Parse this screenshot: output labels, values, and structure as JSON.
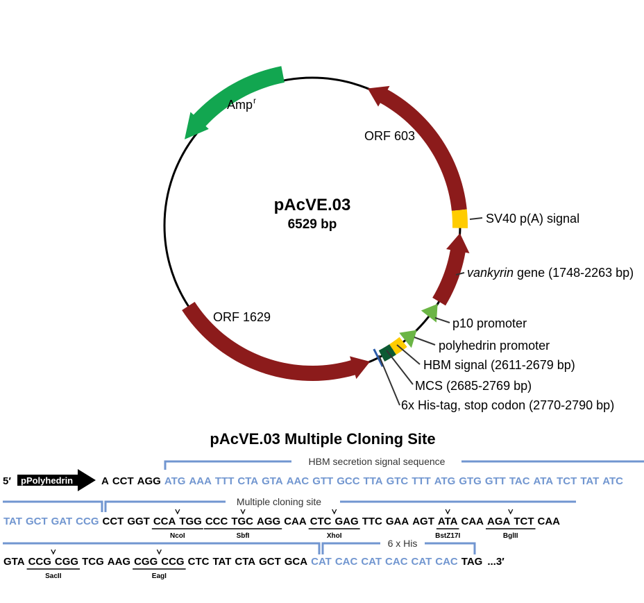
{
  "plasmid": {
    "name": "pAcVE.03",
    "size": "6529 bp",
    "features": [
      {
        "label": "Amp",
        "superscript": "r",
        "color": "#12a650"
      },
      {
        "label": "ORF 603",
        "color": "#8c1b1b"
      },
      {
        "label": "SV40 p(A) signal",
        "color": "#ffcc00"
      },
      {
        "label_italic": "vankyrin",
        "label": "gene (1748-2263 bp)",
        "color": "#8c1b1b"
      },
      {
        "label": "p10 promoter",
        "color": "#6bb545"
      },
      {
        "label": "polyhedrin promoter",
        "color": "#6bb545"
      },
      {
        "label": "HBM signal (2611-2679 bp)",
        "color": "#ffcc00"
      },
      {
        "label": "MCS (2685-2769 bp)",
        "color": "#0d5a33"
      },
      {
        "label": "6x His-tag, stop codon (2770-2790 bp)",
        "color": "#2b5ba8"
      },
      {
        "label": "ORF 1629",
        "color": "#8c1b1b"
      }
    ]
  },
  "mcs": {
    "title": "pAcVE.03 Multiple Cloning Site",
    "start": "5′",
    "promoter": "pPolyhedrin",
    "end": "...3′",
    "annotations": [
      "HBM secretion signal sequence",
      "Multiple cloning site",
      "6 x His"
    ],
    "rows": [
      [
        {
          "codons": [
            "A",
            "CCT",
            "AGG"
          ],
          "color": "#000000"
        },
        {
          "codons": [
            "ATG",
            "AAA",
            "TTT",
            "CTA",
            "GTA",
            "AAC",
            "GTT",
            "GCC",
            "TTA",
            "GTC",
            "TTT",
            "ATG",
            "GTG",
            "GTT",
            "TAC",
            "ATA",
            "TCT",
            "TAT",
            "ATC"
          ],
          "color": "#7196d0"
        }
      ],
      [
        {
          "codons": [
            "TAT",
            "GCT",
            "GAT",
            "CCG"
          ],
          "color": "#7196d0"
        },
        {
          "codons": [
            "CCT",
            "GGT"
          ],
          "color": "#000000"
        },
        {
          "codons": [
            "CCA",
            "TGG"
          ],
          "color": "#000000",
          "enzyme": "NcoI"
        },
        {
          "codons": [
            "CCC",
            "TGC",
            "AGG"
          ],
          "color": "#000000",
          "enzyme": "SbfI"
        },
        {
          "codons": [
            "CAA"
          ],
          "color": "#000000"
        },
        {
          "codons": [
            "CTC",
            "GAG"
          ],
          "color": "#000000",
          "enzyme": "XhoI"
        },
        {
          "codons": [
            "TTC",
            "GAA",
            "AGT"
          ],
          "color": "#000000"
        },
        {
          "codons": [
            "ATA"
          ],
          "color": "#000000",
          "enzyme": "BstZ17I"
        },
        {
          "codons": [
            "CAA"
          ],
          "color": "#000000"
        },
        {
          "codons": [
            "AGA",
            "TCT"
          ],
          "color": "#000000",
          "enzyme": "BglII"
        },
        {
          "codons": [
            "CAA"
          ],
          "color": "#000000"
        }
      ],
      [
        {
          "codons": [
            "GTA"
          ],
          "color": "#000000"
        },
        {
          "codons": [
            "CCG",
            "CGG"
          ],
          "color": "#000000",
          "enzyme": "SacII"
        },
        {
          "codons": [
            "TCG",
            "AAG"
          ],
          "color": "#000000"
        },
        {
          "codons": [
            "CGG",
            "CCG"
          ],
          "color": "#000000",
          "enzyme": "EagI"
        },
        {
          "codons": [
            "CTC",
            "TAT",
            "CTA",
            "GCT",
            "GCA"
          ],
          "color": "#000000"
        },
        {
          "codons": [
            "CAT",
            "CAC",
            "CAT",
            "CAC",
            "CAT",
            "CAC"
          ],
          "color": "#7196d0"
        },
        {
          "codons": [
            "TAG"
          ],
          "color": "#000000"
        }
      ]
    ]
  }
}
